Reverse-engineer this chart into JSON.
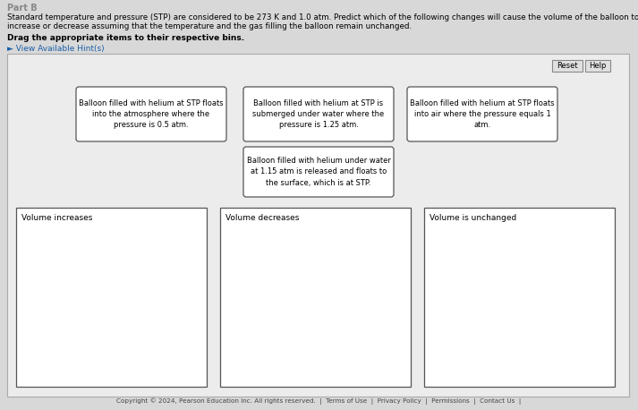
{
  "bg_color": "#d8d8d8",
  "panel_bg": "#ececec",
  "box_bg": "#ffffff",
  "text_color": "#000000",
  "title_line1": "Standard temperature and pressure (STP) are considered to be 273 K and 1.0 atm. Predict which of the following changes will cause the volume of the balloon to",
  "title_line2": "increase or decrease assuming that the temperature and the gas filling the balloon remain unchanged.",
  "drag_instruction": "Drag the appropriate items to their respective bins.",
  "hint_text": "► View Available Hint(s)",
  "part_label": "Part B",
  "card1_text": "Balloon filled with helium at STP floats\ninto the atmosphere where the\npressure is 0.5 atm.",
  "card2_text": "Balloon filled with helium at STP is\nsubmerged under water where the\npressure is 1.25 atm.",
  "card3_text": "Balloon filled with helium at STP floats\ninto air where the pressure equals 1\natm.",
  "card4_text": "Balloon filled with helium under water\nat 1.15 atm is released and floats to\nthe surface, which is at STP.",
  "bin1_label": "Volume increases",
  "bin2_label": "Volume decreases",
  "bin3_label": "Volume is unchanged",
  "reset_label": "Reset",
  "help_label": "Help",
  "footer_text": "Copyright © 2024, Pearson Education Inc. All rights reserved.  |  Terms of Use  |  Privacy Policy  |  Permissions  |  Contact Us  |"
}
